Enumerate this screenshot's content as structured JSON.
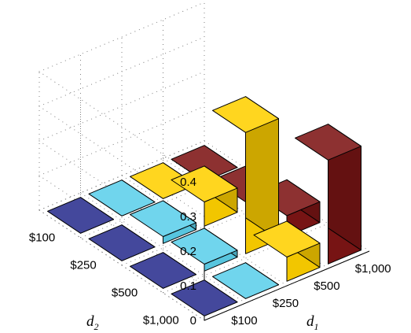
{
  "chart_data": {
    "type": "bar3d",
    "d1_label": "d",
    "d1_subscript": "1",
    "d2_label": "d",
    "d2_subscript": "2",
    "d1_categories": [
      "$100",
      "$250",
      "$500",
      "$1,000"
    ],
    "d2_categories": [
      "$100",
      "$250",
      "$500",
      "$1,000"
    ],
    "z_ticks": [
      "0",
      "0.1",
      "0.2",
      "0.3",
      "0.4"
    ],
    "zlim": [
      0,
      0.4
    ],
    "grid": true,
    "colors": {
      "$100": "#2b2f8f",
      "$250": "#5ccfea",
      "$500": "#ffd000",
      "$1,000": "#7d1515"
    },
    "values": [
      [
        0,
        0,
        0,
        0
      ],
      [
        0,
        0.02,
        0.07,
        0.02
      ],
      [
        0,
        0.02,
        0.35,
        0.06
      ],
      [
        0,
        0,
        0.07,
        0.3
      ]
    ],
    "values_note_rows": "rows = d2 index, cols = d1 index"
  }
}
